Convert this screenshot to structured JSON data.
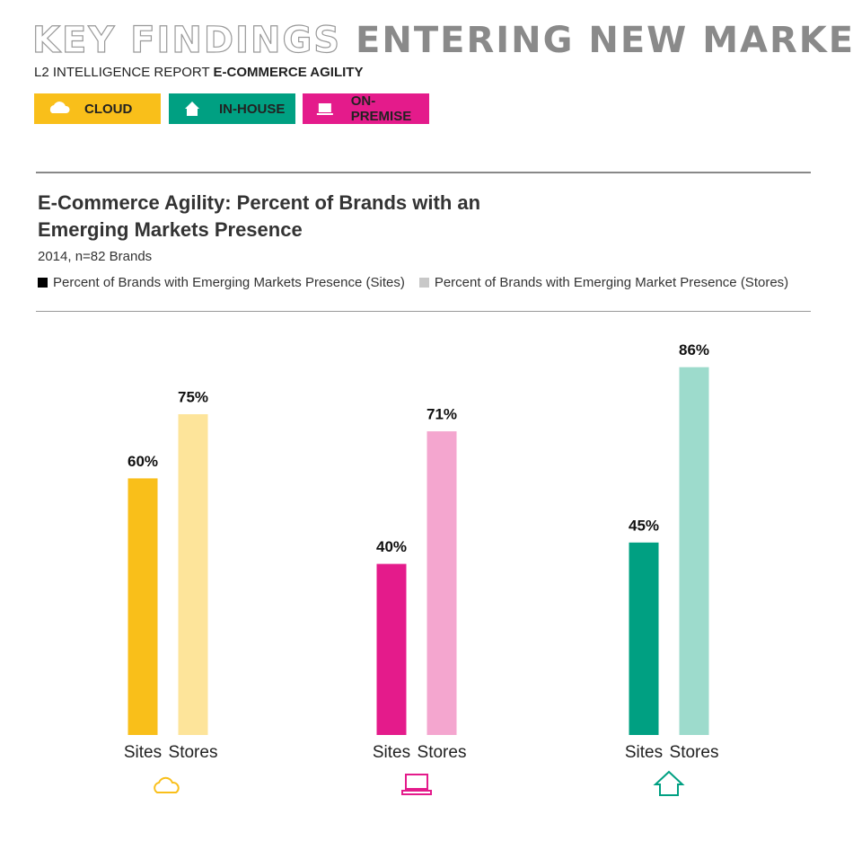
{
  "header": {
    "title_light": "KEY FINDINGS",
    "title_bold": "ENTERING NEW MARKETS",
    "report": "L2 INTELLIGENCE REPORT",
    "report_bold": "E-COMMERCE AGILITY",
    "badges": [
      {
        "label": "CLOUD",
        "color": "#f9bf1a"
      },
      {
        "label": "IN-HOUSE",
        "color": "#00a082"
      },
      {
        "label": "ON-PREMISE",
        "color": "#e41b8b"
      }
    ]
  },
  "chart_data": {
    "type": "bar",
    "title": "E-Commerce Agility: Percent of Brands with an Emerging Markets Presence",
    "subtitle": "2014, n=82 Brands",
    "categories": [
      null,
      null,
      null
    ],
    "bar_labels": [
      "Sites",
      "Stores"
    ],
    "series": [
      {
        "name": "Percent of Brands with Emerging Markets Presence (Sites)",
        "color": "#000000",
        "values": [
          60,
          40,
          45
        ],
        "value_labels": [
          "60%",
          "40%",
          "45%"
        ],
        "bar_colors": [
          "#f9bf1a",
          "#e41b8b",
          "#00a082"
        ]
      },
      {
        "name": "Percent of Brands with Emerging Market Presence (Stores)",
        "color": "#c8c8c8",
        "values": [
          75,
          71,
          86
        ],
        "value_labels": [
          "75%",
          "71%",
          "86%"
        ],
        "bar_colors": [
          "#fde49a",
          "#f4a6cf",
          "#9ddbcc"
        ]
      }
    ]
  }
}
